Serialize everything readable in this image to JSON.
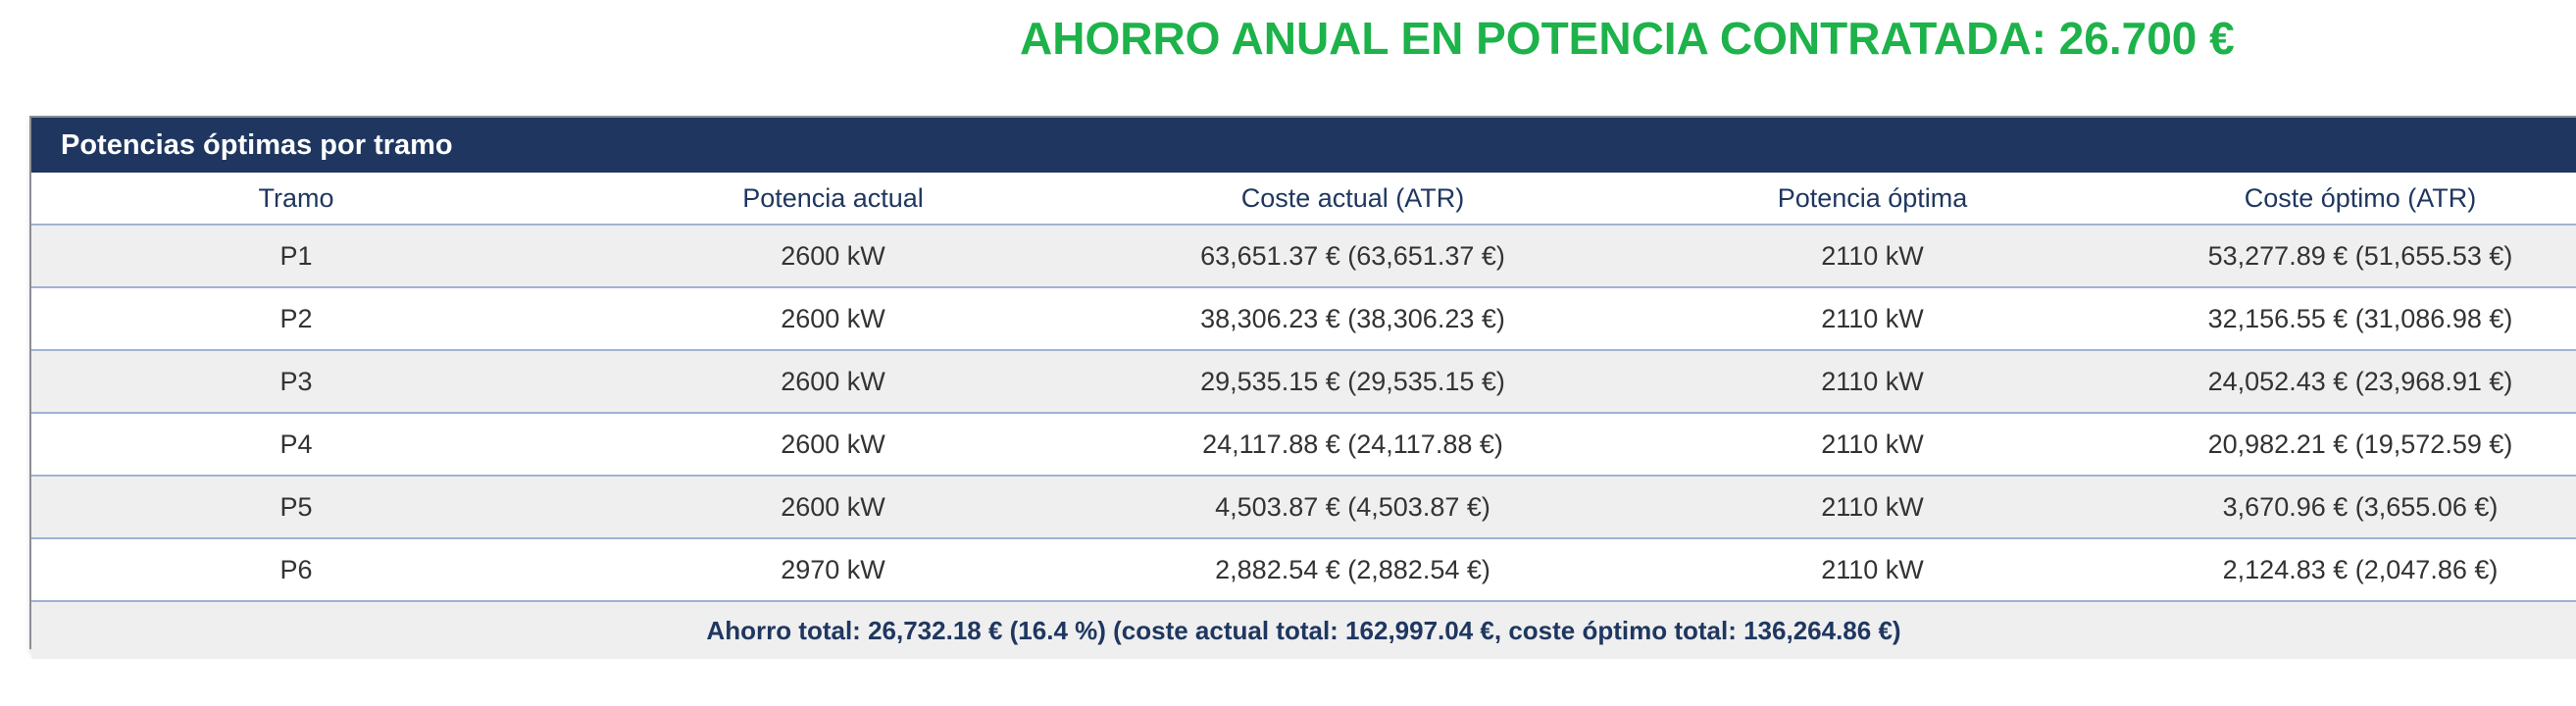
{
  "headline": "AHORRO ANUAL EN POTENCIA CONTRATADA: 26.700 €",
  "panel": {
    "title": "Potencias óptimas por tramo",
    "columns": [
      "Tramo",
      "Potencia actual",
      "Coste actual (ATR)",
      "Potencia óptima",
      "Coste óptimo (ATR)"
    ],
    "rows": [
      [
        "P1",
        "2600 kW",
        "63,651.37 € (63,651.37 €)",
        "2110 kW",
        "53,277.89 € (51,655.53 €)"
      ],
      [
        "P2",
        "2600 kW",
        "38,306.23 € (38,306.23 €)",
        "2110 kW",
        "32,156.55 € (31,086.98 €)"
      ],
      [
        "P3",
        "2600 kW",
        "29,535.15 € (29,535.15 €)",
        "2110 kW",
        "24,052.43 € (23,968.91 €)"
      ],
      [
        "P4",
        "2600 kW",
        "24,117.88 € (24,117.88 €)",
        "2110 kW",
        "20,982.21 € (19,572.59 €)"
      ],
      [
        "P5",
        "2600 kW",
        "4,503.87 € (4,503.87 €)",
        "2110 kW",
        "3,670.96 € (3,655.06 €)"
      ],
      [
        "P6",
        "2970 kW",
        "2,882.54 € (2,882.54 €)",
        "2110 kW",
        "2,124.83 € (2,047.86 €)"
      ]
    ],
    "total": "Ahorro total: 26,732.18 € (16.4 %) (coste actual total: 162,997.04 €, coste óptimo total: 136,264.86 €)"
  },
  "colors": {
    "headline": "#1db24a",
    "header_bar": "#1f3760",
    "row_alt": "#efefef",
    "row_border": "#9fb3d3"
  }
}
